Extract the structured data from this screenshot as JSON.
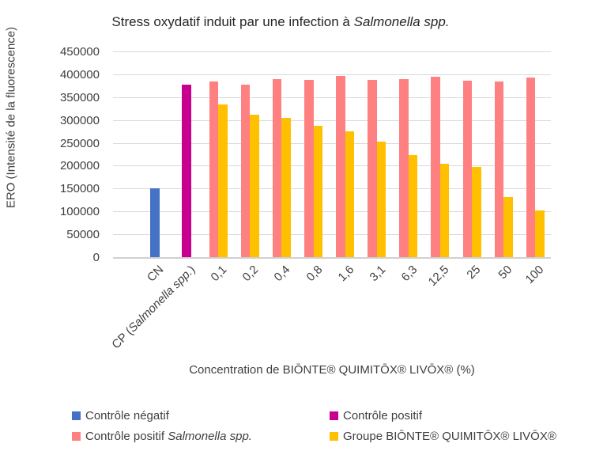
{
  "title": {
    "prefix": "Stress oxydatif induit par une infection à ",
    "italic": "Salmonella spp."
  },
  "chart_data": {
    "type": "bar",
    "title": "Stress oxydatif induit par une infection à Salmonella spp.",
    "xlabel": "Concentration de BIŌNTE® QUIMITŌX® LIVŌX® (%)",
    "ylabel": "ERO (Intensité de la fluorescence)",
    "ylim": [
      0,
      450000
    ],
    "ytick_step": 50000,
    "yticks": [
      0,
      50000,
      100000,
      150000,
      200000,
      250000,
      300000,
      350000,
      400000,
      450000
    ],
    "grid": true,
    "legend_position": "bottom",
    "categories": [
      "CN",
      "CP (Salmonella spp.)",
      "0,1",
      "0,2",
      "0,4",
      "0,8",
      "1,6",
      "3,1",
      "6,3",
      "12,5",
      "25",
      "50",
      "100"
    ],
    "category_italic_suffix": {
      "1": {
        "prefix": "CP (",
        "italic": "Salmonella spp.",
        "suffix": ")"
      }
    },
    "series": [
      {
        "name": "Contrôle négatif",
        "color": "#4472C4",
        "values": [
          150000,
          null,
          null,
          null,
          null,
          null,
          null,
          null,
          null,
          null,
          null,
          null,
          null
        ]
      },
      {
        "name": "Contrôle positif",
        "color": "#C8008F",
        "values": [
          null,
          378000,
          null,
          null,
          null,
          null,
          null,
          null,
          null,
          null,
          null,
          null,
          null
        ]
      },
      {
        "name": "Contrôle positif Salmonella spp.",
        "name_parts": [
          {
            "text": "Contrôle positif ",
            "italic": false
          },
          {
            "text": "Salmonella spp.",
            "italic": true
          }
        ],
        "color": "#FF8080",
        "values": [
          null,
          null,
          384000,
          377000,
          389000,
          388000,
          397000,
          388000,
          390000,
          394000,
          386000,
          384000,
          393000
        ]
      },
      {
        "name": "Groupe BIŌNTE® QUIMITŌX® LIVŌX®",
        "color": "#FFC000",
        "values": [
          null,
          null,
          334000,
          312000,
          304000,
          287000,
          275000,
          253000,
          223000,
          205000,
          198000,
          131000,
          102000
        ]
      }
    ]
  },
  "colors": {
    "grid": "#D9D9D9",
    "axis": "#D0D0D0",
    "text": "#404040",
    "title_text": "#262626"
  }
}
